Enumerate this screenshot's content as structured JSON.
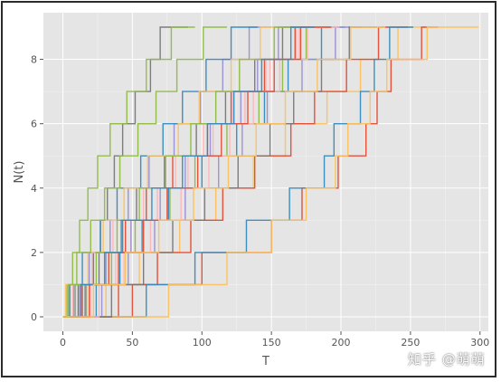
{
  "chart_data": {
    "type": "line",
    "style": "step (post), ggplot theme, grey background with white grid",
    "title": "",
    "xlabel": "T",
    "ylabel": "N(t)",
    "xlim": [
      -14,
      306
    ],
    "ylim": [
      -0.45,
      9.45
    ],
    "xticks": [
      0,
      50,
      100,
      150,
      200,
      250,
      300
    ],
    "yticks": [
      0,
      2,
      4,
      6,
      8
    ],
    "grid": true,
    "colors": [
      "#E24A33",
      "#348ABD",
      "#988ED5",
      "#777777",
      "#FBC15E",
      "#8EBA42",
      "#FFB5B8"
    ],
    "series": [
      {
        "color": "#E24A33",
        "x": [
          0,
          14,
          33,
          45,
          60,
          79,
          104,
          121,
          145,
          167,
          185
        ],
        "y": [
          0,
          1,
          2,
          3,
          4,
          5,
          6,
          7,
          8,
          9,
          9
        ]
      },
      {
        "color": "#348ABD",
        "x": [
          0,
          24,
          41,
          57,
          76,
          100,
          125,
          145,
          162,
          186,
          203
        ],
        "y": [
          0,
          1,
          2,
          3,
          4,
          5,
          6,
          7,
          8,
          9,
          9
        ]
      },
      {
        "color": "#988ED5",
        "x": [
          0,
          8,
          19,
          34,
          47,
          62,
          80,
          99,
          115,
          134,
          150
        ],
        "y": [
          0,
          1,
          2,
          3,
          4,
          5,
          6,
          7,
          8,
          9,
          9
        ]
      },
      {
        "color": "#777777",
        "x": [
          0,
          16,
          22,
          27,
          32,
          37,
          43,
          52,
          63,
          70,
          90
        ],
        "y": [
          0,
          1,
          2,
          3,
          4,
          5,
          6,
          7,
          8,
          9,
          9
        ]
      },
      {
        "color": "#FBC15E",
        "x": [
          0,
          31,
          55,
          84,
          110,
          137,
          160,
          190,
          214,
          241,
          262
        ],
        "y": [
          0,
          1,
          2,
          3,
          4,
          5,
          6,
          7,
          8,
          9,
          9
        ]
      },
      {
        "color": "#8EBA42",
        "x": [
          0,
          3,
          7,
          12,
          18,
          25,
          34,
          46,
          60,
          78,
          95
        ],
        "y": [
          0,
          1,
          2,
          3,
          4,
          5,
          6,
          7,
          8,
          9,
          9
        ]
      },
      {
        "color": "#FFB5B8",
        "x": [
          0,
          20,
          38,
          49,
          68,
          90,
          108,
          131,
          149,
          170,
          187
        ],
        "y": [
          0,
          1,
          2,
          3,
          4,
          5,
          6,
          7,
          8,
          9,
          9
        ]
      },
      {
        "color": "#E24A33",
        "x": [
          0,
          40,
          68,
          92,
          115,
          138,
          164,
          181,
          204,
          227,
          248
        ],
        "y": [
          0,
          1,
          2,
          3,
          4,
          5,
          6,
          7,
          8,
          9,
          9
        ]
      },
      {
        "color": "#348ABD",
        "x": [
          0,
          5,
          14,
          27,
          39,
          56,
          72,
          86,
          103,
          121,
          140
        ],
        "y": [
          0,
          1,
          2,
          3,
          4,
          5,
          6,
          7,
          8,
          9,
          9
        ]
      },
      {
        "color": "#988ED5",
        "x": [
          0,
          28,
          47,
          66,
          88,
          112,
          129,
          147,
          172,
          196,
          215
        ],
        "y": [
          0,
          1,
          2,
          3,
          4,
          5,
          6,
          7,
          8,
          9,
          9
        ]
      },
      {
        "color": "#777777",
        "x": [
          0,
          11,
          26,
          43,
          53,
          73,
          96,
          117,
          138,
          158,
          178
        ],
        "y": [
          0,
          1,
          2,
          3,
          4,
          5,
          6,
          7,
          8,
          9,
          9
        ]
      },
      {
        "color": "#FBC15E",
        "x": [
          0,
          2,
          18,
          29,
          44,
          61,
          83,
          98,
          121,
          142,
          165
        ],
        "y": [
          0,
          1,
          2,
          3,
          4,
          5,
          6,
          7,
          8,
          9,
          9
        ]
      },
      {
        "color": "#8EBA42",
        "x": [
          0,
          17,
          35,
          52,
          77,
          95,
          118,
          141,
          158,
          175,
          192
        ],
        "y": [
          0,
          1,
          2,
          3,
          4,
          5,
          6,
          7,
          8,
          9,
          9
        ]
      },
      {
        "color": "#FFB5B8",
        "x": [
          0,
          7,
          21,
          36,
          58,
          81,
          101,
          122,
          146,
          168,
          188
        ],
        "y": [
          0,
          1,
          2,
          3,
          4,
          5,
          6,
          7,
          8,
          9,
          9
        ]
      },
      {
        "color": "#E24A33",
        "x": [
          0,
          50,
          100,
          150,
          172,
          198,
          218,
          226,
          236,
          258,
          270
        ],
        "y": [
          0,
          1,
          2,
          3,
          4,
          5,
          6,
          7,
          8,
          9,
          9
        ]
      },
      {
        "color": "#348ABD",
        "x": [
          0,
          60,
          95,
          132,
          163,
          188,
          195,
          214,
          224,
          235,
          252
        ],
        "y": [
          0,
          1,
          2,
          3,
          4,
          5,
          6,
          7,
          8,
          9,
          9
        ]
      },
      {
        "color": "#FBC15E",
        "x": [
          0,
          76,
          118,
          150,
          175,
          196,
          205,
          221,
          233,
          262,
          299
        ],
        "y": [
          0,
          1,
          2,
          3,
          4,
          5,
          6,
          7,
          8,
          9,
          9
        ]
      },
      {
        "color": "#988ED5",
        "x": [
          0,
          12,
          31,
          49,
          70,
          88,
          106,
          128,
          140,
          155,
          174
        ],
        "y": [
          0,
          1,
          2,
          3,
          4,
          5,
          6,
          7,
          8,
          9,
          9
        ]
      },
      {
        "color": "#8EBA42",
        "x": [
          0,
          9,
          24,
          39,
          55,
          74,
          92,
          110,
          127,
          152,
          171
        ],
        "y": [
          0,
          1,
          2,
          3,
          4,
          5,
          6,
          7,
          8,
          9,
          9
        ]
      },
      {
        "color": "#777777",
        "x": [
          0,
          35,
          58,
          79,
          102,
          126,
          149,
          166,
          186,
          206,
          226
        ],
        "y": [
          0,
          1,
          2,
          3,
          4,
          5,
          6,
          7,
          8,
          9,
          9
        ]
      },
      {
        "color": "#FFB5B8",
        "x": [
          0,
          26,
          44,
          63,
          85,
          105,
          120,
          137,
          156,
          176,
          199
        ],
        "y": [
          0,
          1,
          2,
          3,
          4,
          5,
          6,
          7,
          8,
          9,
          9
        ]
      },
      {
        "color": "#E24A33",
        "x": [
          0,
          19,
          40,
          58,
          75,
          97,
          114,
          133,
          152,
          171,
          193
        ],
        "y": [
          0,
          1,
          2,
          3,
          4,
          5,
          6,
          7,
          8,
          9,
          9
        ]
      },
      {
        "color": "#348ABD",
        "x": [
          0,
          13,
          30,
          42,
          64,
          86,
          104,
          123,
          143,
          164,
          181
        ],
        "y": [
          0,
          1,
          2,
          3,
          4,
          5,
          6,
          7,
          8,
          9,
          9
        ]
      },
      {
        "color": "#8EBA42",
        "x": [
          0,
          4,
          10,
          20,
          30,
          41,
          54,
          67,
          82,
          101,
          118
        ],
        "y": [
          0,
          1,
          2,
          3,
          4,
          5,
          6,
          7,
          8,
          9,
          9
        ]
      },
      {
        "color": "#FBC15E",
        "x": [
          0,
          22,
          45,
          69,
          94,
          119,
          139,
          160,
          183,
          207,
          232
        ],
        "y": [
          0,
          1,
          2,
          3,
          4,
          5,
          6,
          7,
          8,
          9,
          9
        ]
      }
    ]
  },
  "watermark": "知乎 @萌萌"
}
